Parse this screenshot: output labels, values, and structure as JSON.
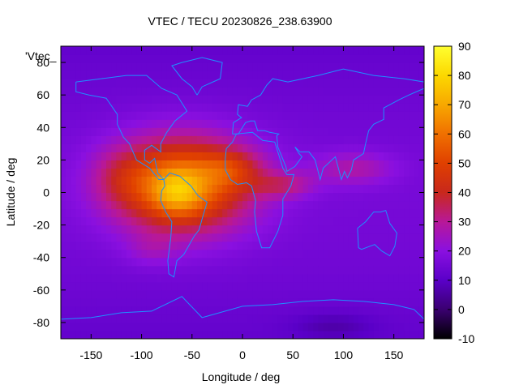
{
  "chart_data": {
    "type": "heatmap",
    "title": "VTEC / TECU 20230826_238.63900",
    "xlabel": "Longitude / deg",
    "ylabel": "Latitude / deg",
    "plot_label": "'Vtec_",
    "xlim": [
      -180,
      180
    ],
    "ylim": [
      -90,
      90
    ],
    "x_ticks": [
      -150,
      -100,
      -50,
      0,
      50,
      100,
      150
    ],
    "y_ticks": [
      -80,
      -60,
      -40,
      -20,
      0,
      20,
      40,
      60,
      80
    ],
    "colorbar": {
      "range": [
        -10,
        90
      ],
      "ticks": [
        -10,
        0,
        10,
        20,
        30,
        40,
        50,
        60,
        70,
        80,
        90
      ]
    },
    "overlay": "coastlines",
    "colors": {
      "coastline": "#1e90ff",
      "frame": "#000000"
    }
  }
}
